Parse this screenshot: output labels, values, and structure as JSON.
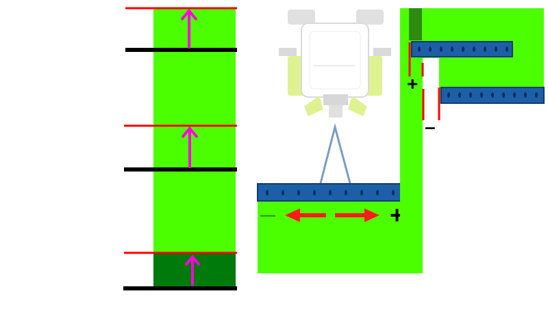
{
  "colors": {
    "field_green": "#4cff00",
    "worked_green": "#007a0a",
    "boundary_red": "#ff0000",
    "baseline_black": "#000000",
    "arrow_magenta": "#ff00dd",
    "boom_blue": "#1c5fa8",
    "linkage_blue": "#7a9cc6",
    "tractor_yellow": "#d8f070",
    "direction_red": "#ff1a1a"
  },
  "icons": {
    "up_arrow": "up-arrow-icon",
    "left_arrow": "left-arrow-icon",
    "right_arrow": "right-arrow-icon",
    "tractor": "tractor-icon"
  },
  "panel3": {
    "plus_sign": "+",
    "minus_sign": "–"
  },
  "panel2": {
    "minus_sign": "—",
    "plus_sign": "+"
  }
}
